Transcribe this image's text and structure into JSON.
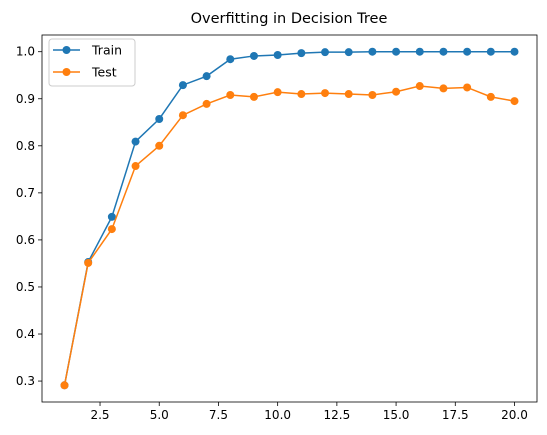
{
  "chart_data": {
    "type": "line",
    "title": "Overfitting in Decision Tree",
    "xlabel": "",
    "ylabel": "",
    "xlim": [
      0.05,
      20.95
    ],
    "ylim": [
      0.2555,
      1.0355
    ],
    "xticks": [
      2.5,
      5.0,
      7.5,
      10.0,
      12.5,
      15.0,
      17.5,
      20.0
    ],
    "xtick_labels": [
      "2.5",
      "5.0",
      "7.5",
      "10.0",
      "12.5",
      "15.0",
      "17.5",
      "20.0"
    ],
    "yticks": [
      0.3,
      0.4,
      0.5,
      0.6,
      0.7,
      0.8,
      0.9,
      1.0
    ],
    "ytick_labels": [
      "0.3",
      "0.4",
      "0.5",
      "0.6",
      "0.7",
      "0.8",
      "0.9",
      "1.0"
    ],
    "grid": false,
    "legend_position": "top-left",
    "x": [
      1,
      2,
      3,
      4,
      5,
      6,
      7,
      8,
      9,
      10,
      11,
      12,
      13,
      14,
      15,
      16,
      17,
      18,
      19,
      20
    ],
    "series": [
      {
        "name": "Train",
        "color": "#1f77b4",
        "marker": "circle",
        "values": [
          0.291,
          0.553,
          0.649,
          0.809,
          0.857,
          0.929,
          0.948,
          0.984,
          0.991,
          0.993,
          0.997,
          0.999,
          0.999,
          1.0,
          1.0,
          1.0,
          1.0,
          1.0,
          1.0,
          1.0
        ]
      },
      {
        "name": "Test",
        "color": "#ff7f0e",
        "marker": "circle",
        "values": [
          0.291,
          0.551,
          0.623,
          0.757,
          0.8,
          0.865,
          0.889,
          0.908,
          0.904,
          0.914,
          0.91,
          0.912,
          0.91,
          0.908,
          0.915,
          0.927,
          0.922,
          0.924,
          0.904,
          0.895
        ]
      }
    ]
  }
}
